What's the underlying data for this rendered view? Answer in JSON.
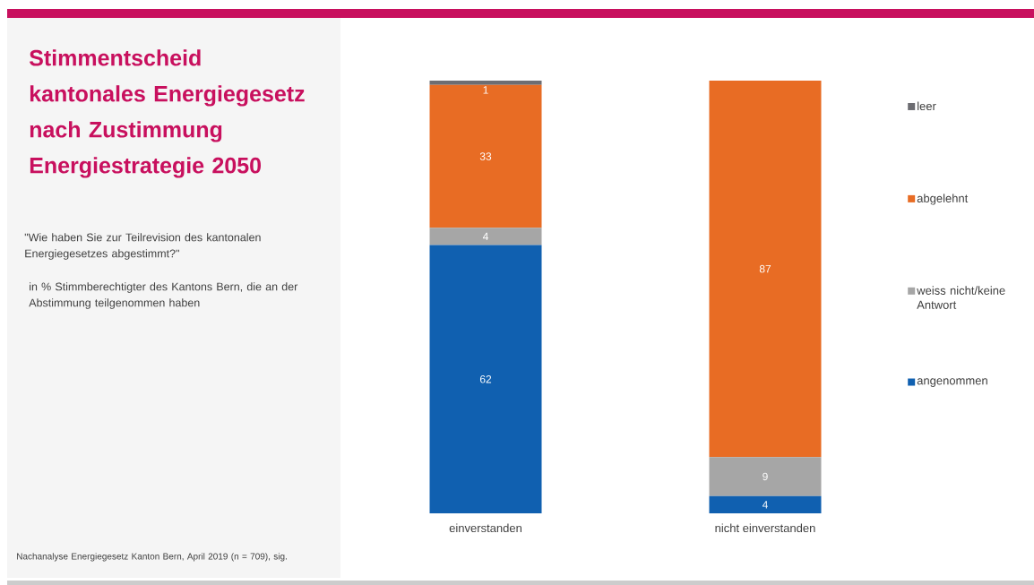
{
  "chart_data": {
    "type": "bar",
    "stacked": true,
    "title": "Stimmentscheid kantonales Energiegesetz nach Zustimmung Energiestrategie 2050",
    "subtitle": "\"Wie haben Sie zur Teilrevision des kantonalen Energiegesetzes abgestimmt?\"",
    "annotations": [
      "in % Stimmberechtigter des Kantons Bern, die an der Abstimmung teilgenommen haben",
      "Nachanalyse Energiegesetz Kanton Bern, April 2019 (n = 709), sig."
    ],
    "categories": [
      "einverstanden",
      "nicht einverstanden"
    ],
    "series": [
      {
        "name": "angenommen",
        "color": "#1060b0",
        "values": [
          62,
          4
        ]
      },
      {
        "name": "weiss nicht/keine Antwort",
        "color": "#a6a6a6",
        "values": [
          4,
          9
        ]
      },
      {
        "name": "abgelehnt",
        "color": "#e86c24",
        "values": [
          33,
          87
        ]
      },
      {
        "name": "leer",
        "color": "#6d6d72",
        "values": [
          1,
          null
        ]
      }
    ],
    "data_labels": true,
    "legend": "right"
  }
}
